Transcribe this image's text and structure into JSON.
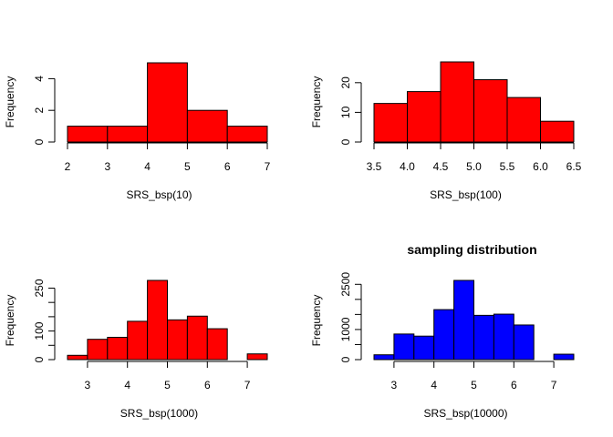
{
  "chart_data": [
    {
      "type": "bar",
      "title": "",
      "xlabel": "SRS_bsp(10)",
      "ylabel": "Frequency",
      "bar_color": "#ff0000",
      "bins": [
        [
          2,
          3
        ],
        [
          3,
          4
        ],
        [
          4,
          5
        ],
        [
          5,
          6
        ],
        [
          6,
          7
        ]
      ],
      "values": [
        1,
        1,
        5,
        2,
        1
      ],
      "xlim": [
        2,
        7
      ],
      "ylim": [
        0,
        5
      ],
      "xticks": [
        2,
        3,
        4,
        5,
        6,
        7
      ],
      "xtick_labels": [
        "2",
        "3",
        "4",
        "5",
        "6",
        "7"
      ],
      "yticks": [
        0,
        2,
        4
      ],
      "ytick_labels": [
        "0",
        "2",
        "4"
      ],
      "grid": false
    },
    {
      "type": "bar",
      "title": "",
      "xlabel": "SRS_bsp(100)",
      "ylabel": "Frequency",
      "bar_color": "#ff0000",
      "bins": [
        [
          3.5,
          4.0
        ],
        [
          4.0,
          4.5
        ],
        [
          4.5,
          5.0
        ],
        [
          5.0,
          5.5
        ],
        [
          5.5,
          6.0
        ],
        [
          6.0,
          6.5
        ]
      ],
      "values": [
        13,
        17,
        27,
        21,
        15,
        7
      ],
      "xlim": [
        3.5,
        6.5
      ],
      "ylim": [
        0,
        27
      ],
      "xticks": [
        3.5,
        4.0,
        4.5,
        5.0,
        5.5,
        6.0,
        6.5
      ],
      "xtick_labels": [
        "3.5",
        "4.0",
        "4.5",
        "5.0",
        "5.5",
        "6.0",
        "6.5"
      ],
      "yticks": [
        0,
        10,
        20
      ],
      "ytick_labels": [
        "0",
        "10",
        "20"
      ],
      "grid": false
    },
    {
      "type": "bar",
      "title": "",
      "xlabel": "SRS_bsp(1000)",
      "ylabel": "Frequency",
      "bar_color": "#ff0000",
      "bins": [
        [
          2.5,
          3.0
        ],
        [
          3.0,
          3.5
        ],
        [
          3.5,
          4.0
        ],
        [
          4.0,
          4.5
        ],
        [
          4.5,
          5.0
        ],
        [
          5.0,
          5.5
        ],
        [
          5.5,
          6.0
        ],
        [
          6.0,
          6.5
        ],
        [
          6.5,
          7.0
        ],
        [
          7.0,
          7.5
        ]
      ],
      "values": [
        15,
        71,
        78,
        134,
        277,
        139,
        152,
        108,
        0,
        20
      ],
      "xlim": [
        2.5,
        7.5
      ],
      "ylim": [
        0,
        277
      ],
      "xticks": [
        3,
        4,
        5,
        6,
        7
      ],
      "xtick_labels": [
        "3",
        "4",
        "5",
        "6",
        "7"
      ],
      "yticks": [
        0,
        50,
        100,
        150,
        200,
        250
      ],
      "ytick_labels": [
        "0",
        "",
        "100",
        "",
        "",
        "250"
      ],
      "grid": false
    },
    {
      "type": "bar",
      "title": "sampling distribution",
      "xlabel": "SRS_bsp(10000)",
      "ylabel": "Frequency",
      "bar_color": "#0000ff",
      "bins": [
        [
          2.5,
          3.0
        ],
        [
          3.0,
          3.5
        ],
        [
          3.5,
          4.0
        ],
        [
          4.0,
          4.5
        ],
        [
          4.5,
          5.0
        ],
        [
          5.0,
          5.5
        ],
        [
          5.5,
          6.0
        ],
        [
          6.0,
          6.5
        ],
        [
          6.5,
          7.0
        ],
        [
          7.0,
          7.5
        ]
      ],
      "values": [
        160,
        850,
        780,
        1660,
        2630,
        1470,
        1510,
        1150,
        0,
        180
      ],
      "xlim": [
        2.5,
        7.5
      ],
      "ylim": [
        0,
        2630
      ],
      "xticks": [
        3,
        4,
        5,
        6,
        7
      ],
      "xtick_labels": [
        "3",
        "4",
        "5",
        "6",
        "7"
      ],
      "yticks": [
        0,
        500,
        1000,
        1500,
        2000,
        2500
      ],
      "ytick_labels": [
        "0",
        "",
        "1000",
        "",
        "",
        "2500"
      ],
      "grid": false
    }
  ]
}
